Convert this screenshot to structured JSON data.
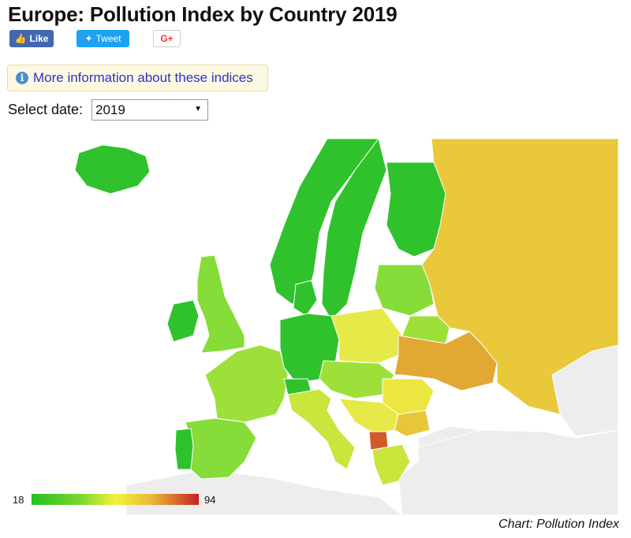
{
  "header": {
    "title": "Europe: Pollution Index by Country 2019"
  },
  "social": {
    "like_label": "Like",
    "tweet_label": "Tweet",
    "gplus_label": "G+"
  },
  "info": {
    "label": "More information about these indices"
  },
  "date": {
    "label": "Select date:",
    "selected": "2019"
  },
  "legend": {
    "min": "18",
    "max": "94"
  },
  "source": "Chart: Pollution Index",
  "colors": {
    "sea": "#ffffff",
    "no_data": "#ededed",
    "green": "#2fc22c",
    "light_green": "#86dc38",
    "yellow_green": "#c8e63c",
    "yellow": "#ece640",
    "mustard": "#e8c63a",
    "orange": "#e2a834",
    "red": "#d05a28"
  }
}
